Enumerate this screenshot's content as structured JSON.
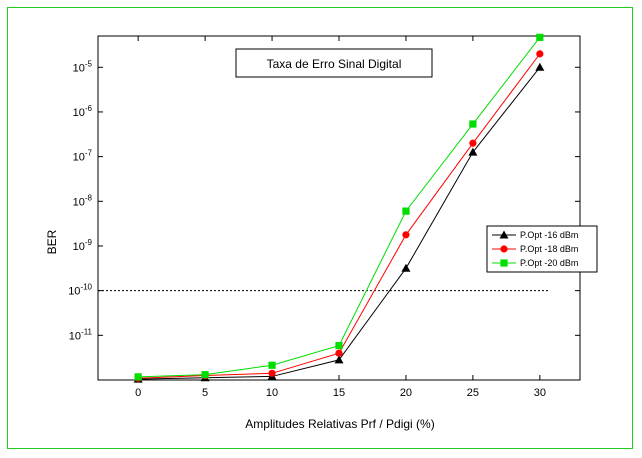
{
  "chart_data": {
    "type": "line",
    "title": "Taxa de Erro Sinal Digital",
    "xlabel": "Amplitudes Relativas Prf / Pdigi (%)",
    "ylabel": "BER",
    "x": [
      0,
      5,
      10,
      15,
      20,
      25,
      30
    ],
    "xticks": [
      "0",
      "5",
      "10",
      "15",
      "20",
      "25",
      "30"
    ],
    "xlim": [
      -3,
      33
    ],
    "yscale": "log",
    "ylim_exp": [
      -12,
      -4.3
    ],
    "yticks": [
      {
        "exp": -11,
        "base": "10",
        "sup": "-11"
      },
      {
        "exp": -10,
        "base": "10",
        "sup": "-10"
      },
      {
        "exp": -9,
        "base": "10",
        "sup": "-9"
      },
      {
        "exp": -8,
        "base": "10",
        "sup": "-8"
      },
      {
        "exp": -7,
        "base": "10",
        "sup": "-7"
      },
      {
        "exp": -6,
        "base": "10",
        "sup": "-6"
      },
      {
        "exp": -5,
        "base": "10",
        "sup": "-5"
      }
    ],
    "reference_line_exp": -10,
    "legend_position": "right",
    "series": [
      {
        "name": "P.Opt -16 dBm",
        "color": "#000000",
        "marker": "triangle",
        "y_exp": [
          -11.98,
          -11.95,
          -11.92,
          -11.55,
          -9.5,
          -6.9,
          -5.0
        ]
      },
      {
        "name": "P.Opt -18 dBm",
        "color": "#ff0000",
        "marker": "circle",
        "y_exp": [
          -11.96,
          -11.9,
          -11.85,
          -11.4,
          -8.75,
          -6.7,
          -4.7
        ]
      },
      {
        "name": "P.Opt -20 dBm",
        "color": "#00dd00",
        "marker": "square",
        "y_exp": [
          -11.93,
          -11.88,
          -11.67,
          -11.23,
          -8.22,
          -6.27,
          -4.33
        ]
      }
    ]
  }
}
